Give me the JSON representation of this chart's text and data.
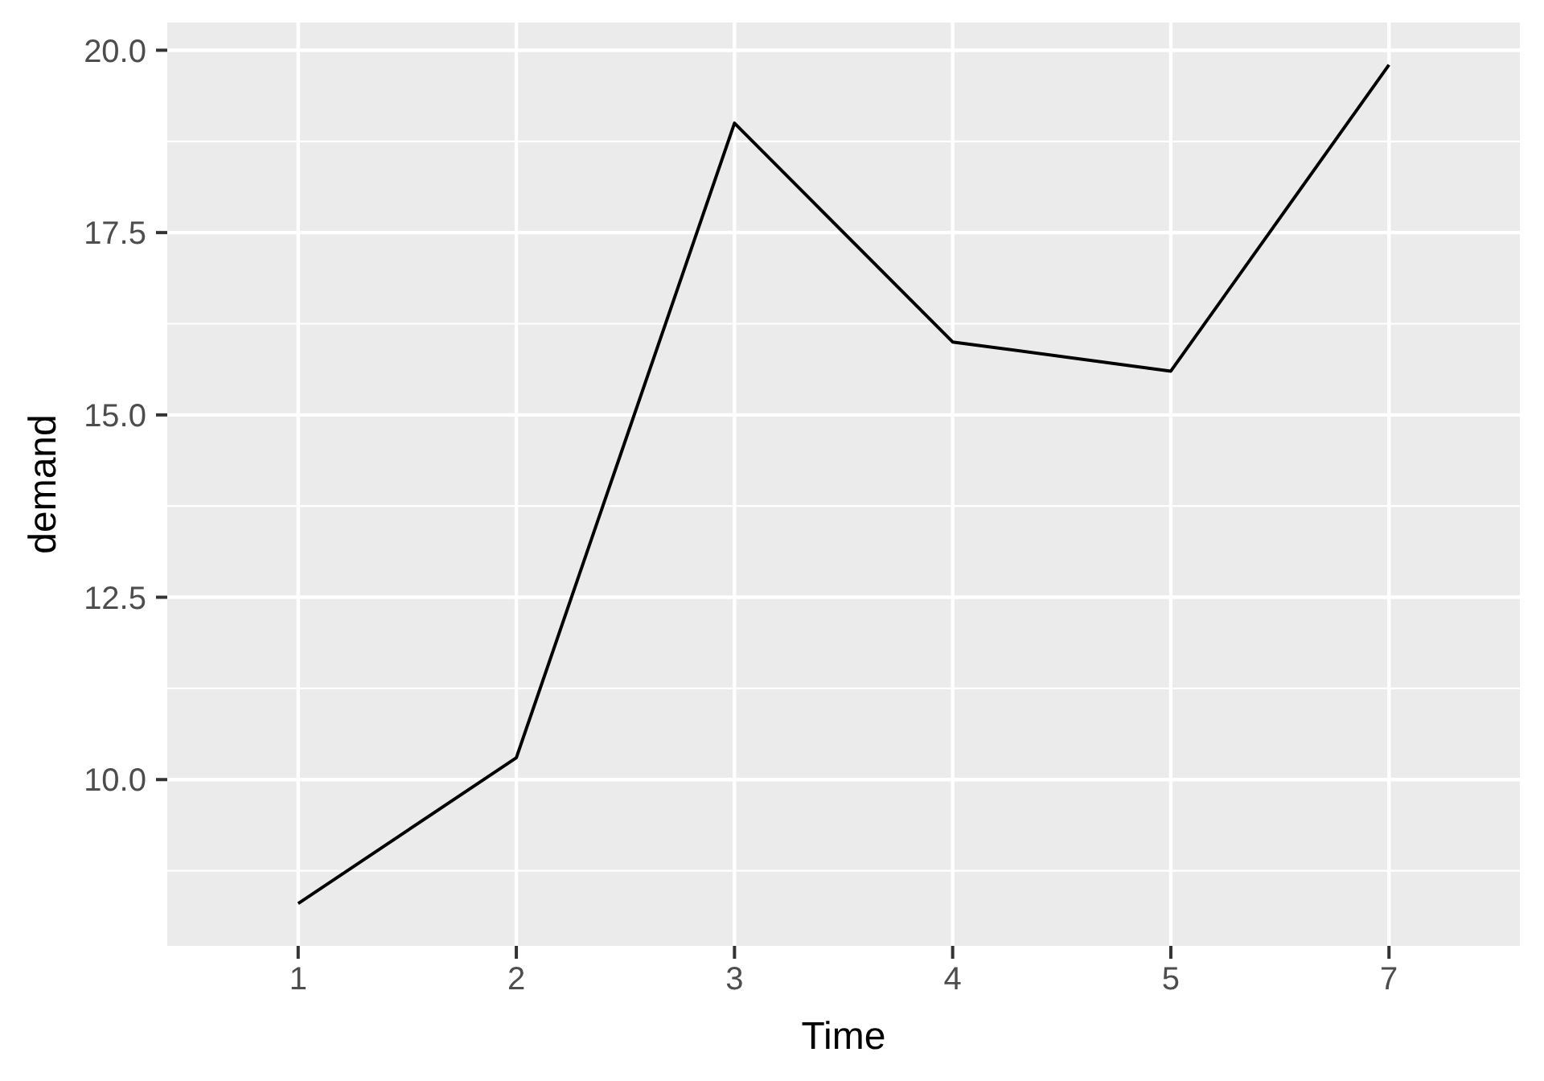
{
  "chart_data": {
    "type": "line",
    "xlabel": "Time",
    "ylabel": "demand",
    "categories": [
      "1",
      "2",
      "3",
      "4",
      "5",
      "7"
    ],
    "values": [
      8.3,
      10.3,
      19.0,
      16.0,
      15.6,
      19.8
    ],
    "color": "#000000",
    "ylim": [
      7.72,
      20.38
    ],
    "yticks": [
      {
        "value": 8.75,
        "label": null
      },
      {
        "value": 10,
        "label": "10.0"
      },
      {
        "value": 11.25,
        "label": null
      },
      {
        "value": 12.5,
        "label": "12.5"
      },
      {
        "value": 13.75,
        "label": null
      },
      {
        "value": 15,
        "label": "15.0"
      },
      {
        "value": 16.25,
        "label": null
      },
      {
        "value": 17.5,
        "label": "17.5"
      },
      {
        "value": 18.75,
        "label": null
      },
      {
        "value": 20,
        "label": "20.0"
      }
    ],
    "grid": true
  }
}
